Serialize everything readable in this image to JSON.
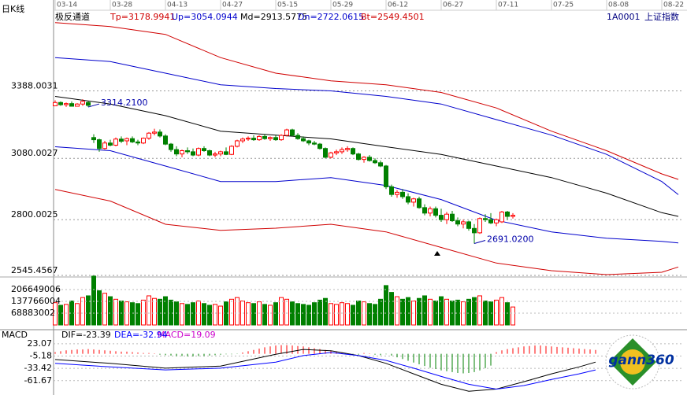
{
  "chart_data": {
    "type": "candlestick",
    "period": "日K线",
    "indicator": "极反通道",
    "code": "1A0001",
    "name": "上证指数",
    "logo": "gann360",
    "up_color": "#ff0000",
    "down_color": "#008000",
    "xlim": [
      0,
      114
    ],
    "xticks": [
      {
        "value": 0,
        "label": "03-14"
      },
      {
        "value": 10,
        "label": "03-28"
      },
      {
        "value": 20,
        "label": "04-13"
      },
      {
        "value": 30,
        "label": "04-27"
      },
      {
        "value": 40,
        "label": "05-15"
      },
      {
        "value": 50,
        "label": "05-29"
      },
      {
        "value": 60,
        "label": "06-12"
      },
      {
        "value": 70,
        "label": "06-27"
      },
      {
        "value": 80,
        "label": "07-11"
      },
      {
        "value": 90,
        "label": "07-25"
      },
      {
        "value": 100,
        "label": "08-08"
      },
      {
        "value": 110,
        "label": "08-22"
      }
    ],
    "ylim": [
      2545.4567,
      3760
    ],
    "yticks": [
      3388.0031,
      3080.0027,
      2800.0025,
      2545.4567
    ],
    "grid": true,
    "x": [
      0,
      1,
      2,
      3,
      4,
      5,
      6,
      7,
      8,
      9,
      10,
      11,
      12,
      13,
      14,
      15,
      16,
      17,
      18,
      19,
      20,
      21,
      22,
      23,
      24,
      25,
      26,
      27,
      28,
      29,
      30,
      31,
      32,
      33,
      34,
      35,
      36,
      37,
      38,
      39,
      40,
      41,
      42,
      43,
      44,
      45,
      46,
      47,
      48,
      49,
      50,
      51,
      52,
      53,
      54,
      55,
      56,
      57,
      58,
      59,
      60,
      61,
      62,
      63,
      64,
      65,
      66,
      67,
      68,
      69,
      70,
      71,
      72,
      73,
      74,
      75,
      76,
      77,
      78,
      79,
      80,
      81,
      82,
      83
    ],
    "open": [
      3320,
      3335,
      3325,
      3330,
      3318,
      3328,
      3335,
      3175,
      3165,
      3125,
      3150,
      3140,
      3168,
      3160,
      3170,
      3155,
      3150,
      3172,
      3195,
      3200,
      3182,
      3145,
      3120,
      3100,
      3115,
      3110,
      3095,
      3125,
      3115,
      3095,
      3100,
      3110,
      3098,
      3135,
      3160,
      3168,
      3172,
      3165,
      3180,
      3170,
      3175,
      3165,
      3185,
      3210,
      3185,
      3170,
      3160,
      3150,
      3145,
      3125,
      3085,
      3105,
      3110,
      3120,
      3125,
      3100,
      3075,
      3085,
      3070,
      3060,
      3045,
      2950,
      2915,
      2925,
      2905,
      2880,
      2895,
      2855,
      2830,
      2850,
      2820,
      2800,
      2825,
      2795,
      2780,
      2790,
      2760,
      2740,
      2805,
      2800,
      2785,
      2790,
      2835,
      2815
    ],
    "high": [
      3345,
      3340,
      3335,
      3340,
      3332,
      3350,
      3340,
      3190,
      3170,
      3160,
      3165,
      3175,
      3180,
      3175,
      3180,
      3165,
      3175,
      3200,
      3215,
      3212,
      3190,
      3150,
      3135,
      3120,
      3130,
      3125,
      3130,
      3135,
      3120,
      3110,
      3115,
      3130,
      3140,
      3165,
      3175,
      3180,
      3185,
      3185,
      3190,
      3180,
      3185,
      3190,
      3215,
      3215,
      3195,
      3180,
      3165,
      3160,
      3150,
      3130,
      3110,
      3120,
      3130,
      3135,
      3130,
      3105,
      3090,
      3095,
      3080,
      3070,
      3050,
      2960,
      2935,
      2940,
      2920,
      2900,
      2905,
      2870,
      2860,
      2860,
      2850,
      2835,
      2840,
      2810,
      2800,
      2795,
      2780,
      2810,
      2825,
      2830,
      2805,
      2840,
      2840,
      2830
    ],
    "low": [
      3320,
      3320,
      3315,
      3318,
      3318,
      3320,
      3314.21,
      3150,
      3110,
      3120,
      3135,
      3135,
      3150,
      3140,
      3150,
      3140,
      3145,
      3165,
      3185,
      3175,
      3140,
      3110,
      3090,
      3085,
      3100,
      3090,
      3090,
      3110,
      3090,
      3085,
      3090,
      3095,
      3095,
      3130,
      3150,
      3160,
      3160,
      3160,
      3165,
      3160,
      3160,
      3160,
      3180,
      3180,
      3165,
      3155,
      3140,
      3140,
      3120,
      3080,
      3080,
      3095,
      3100,
      3110,
      3095,
      3070,
      3060,
      3065,
      3055,
      3040,
      2940,
      2905,
      2900,
      2895,
      2870,
      2860,
      2850,
      2820,
      2815,
      2810,
      2790,
      2780,
      2790,
      2770,
      2760,
      2750,
      2691.02,
      2735,
      2790,
      2780,
      2770,
      2785,
      2800,
      2805
    ],
    "close": [
      3335,
      3325,
      3330,
      3318,
      3328,
      3340,
      3322,
      3165,
      3125,
      3150,
      3140,
      3168,
      3158,
      3170,
      3155,
      3150,
      3172,
      3195,
      3200,
      3182,
      3145,
      3120,
      3100,
      3115,
      3110,
      3095,
      3125,
      3115,
      3095,
      3100,
      3110,
      3098,
      3135,
      3160,
      3168,
      3172,
      3165,
      3180,
      3170,
      3175,
      3165,
      3185,
      3210,
      3185,
      3170,
      3160,
      3150,
      3145,
      3125,
      3085,
      3105,
      3110,
      3120,
      3125,
      3100,
      3075,
      3085,
      3070,
      3060,
      3045,
      2950,
      2915,
      2925,
      2905,
      2880,
      2895,
      2855,
      2830,
      2850,
      2820,
      2800,
      2825,
      2795,
      2780,
      2790,
      2760,
      2740,
      2805,
      2800,
      2785,
      2800,
      2835,
      2815,
      2820
    ],
    "lines": [
      {
        "label": "Tp=3178.9941",
        "color": "#d00000",
        "x": [
          0,
          10,
          20,
          30,
          40,
          50,
          60,
          70,
          80,
          90,
          100,
          110,
          113
        ],
        "values": [
          3700,
          3682,
          3646,
          3540,
          3469,
          3434,
          3416,
          3381,
          3310,
          3204,
          3115,
          3009,
          2984
        ]
      },
      {
        "label": "Up=3054.0944",
        "color": "#0000cc",
        "x": [
          0,
          10,
          20,
          30,
          40,
          50,
          60,
          70,
          80,
          90,
          100,
          110,
          113
        ],
        "values": [
          3540,
          3522,
          3469,
          3416,
          3399,
          3388,
          3363,
          3328,
          3257,
          3186,
          3098,
          2974,
          2914
        ]
      },
      {
        "label": "Md=2913.5775",
        "color": "#000000",
        "x": [
          0,
          10,
          20,
          30,
          40,
          50,
          60,
          70,
          80,
          90,
          100,
          110,
          113
        ],
        "values": [
          3363,
          3328,
          3275,
          3204,
          3186,
          3169,
          3133,
          3098,
          3045,
          2992,
          2921,
          2832,
          2815
        ]
      },
      {
        "label": "Dn=2722.0615",
        "color": "#0000cc",
        "x": [
          0,
          10,
          20,
          30,
          40,
          50,
          60,
          70,
          80,
          90,
          100,
          110,
          113
        ],
        "values": [
          3133,
          3115,
          3045,
          2974,
          2974,
          2992,
          2956,
          2892,
          2797,
          2744,
          2715,
          2701,
          2694
        ]
      },
      {
        "label": "Bt=2549.4501",
        "color": "#d00000",
        "x": [
          0,
          10,
          20,
          30,
          40,
          50,
          60,
          70,
          80,
          90,
          100,
          110,
          113
        ],
        "values": [
          2938,
          2885,
          2779,
          2751,
          2761,
          2779,
          2744,
          2673,
          2602,
          2567,
          2549,
          2560,
          2584
        ]
      }
    ],
    "annotations": [
      {
        "value": 3314.21,
        "label": "3314.2100"
      },
      {
        "value": 2691.02,
        "label": "2691.0200"
      }
    ],
    "volume": {
      "ylim": [
        0,
        280000000
      ],
      "yticks": [
        206649006,
        137766004,
        68883002
      ],
      "values": [
        130000000,
        115000000,
        120000000,
        140000000,
        125000000,
        160000000,
        170000000,
        285000000,
        200000000,
        185000000,
        165000000,
        150000000,
        140000000,
        135000000,
        130000000,
        125000000,
        145000000,
        170000000,
        155000000,
        150000000,
        165000000,
        145000000,
        135000000,
        125000000,
        120000000,
        130000000,
        140000000,
        125000000,
        115000000,
        120000000,
        110000000,
        135000000,
        150000000,
        160000000,
        140000000,
        130000000,
        125000000,
        135000000,
        120000000,
        115000000,
        130000000,
        160000000,
        150000000,
        135000000,
        125000000,
        120000000,
        115000000,
        130000000,
        145000000,
        155000000,
        125000000,
        120000000,
        130000000,
        125000000,
        115000000,
        140000000,
        135000000,
        125000000,
        120000000,
        150000000,
        230000000,
        190000000,
        165000000,
        150000000,
        160000000,
        140000000,
        155000000,
        170000000,
        150000000,
        140000000,
        165000000,
        150000000,
        140000000,
        145000000,
        135000000,
        150000000,
        160000000,
        170000000,
        140000000,
        135000000,
        145000000,
        160000000,
        130000000,
        105000000
      ]
    },
    "macd": {
      "title": "MACD",
      "ylim": [
        -91,
        41
      ],
      "yticks": [
        23.07,
        -5.18,
        -33.42,
        -61.67
      ],
      "histogram_label": "MACD=19.09",
      "histogram_color": "#cc00cc",
      "histogram": [
        4,
        6,
        8,
        9,
        10,
        10,
        11,
        10,
        9,
        8,
        7,
        6,
        5,
        5,
        4,
        3,
        2,
        2,
        1,
        -2,
        -3,
        -4,
        -5,
        -5,
        -6,
        -6,
        -5,
        -5,
        -4,
        -3,
        -2,
        -1,
        -1,
        -0.5,
        3,
        6,
        9,
        12,
        15,
        17,
        19,
        20,
        20,
        19,
        18,
        17,
        15,
        13,
        11,
        9,
        7,
        5,
        3,
        1,
        -1,
        -2,
        2,
        1,
        -2,
        -3,
        -1,
        -4,
        -8,
        -12,
        -16,
        -20,
        -24,
        -28,
        -32,
        -35,
        -38,
        -40,
        -42,
        -44,
        -45,
        -44,
        -42,
        -38,
        -33,
        -27,
        4,
        8,
        11,
        13,
        15,
        17,
        18,
        19,
        19,
        18,
        17,
        16,
        15,
        14,
        13,
        12,
        11,
        10,
        9
      ],
      "lines": [
        {
          "label": "DIF=-23.39",
          "color": "#000000",
          "x": [
            0,
            10,
            20,
            30,
            40,
            45,
            50,
            55,
            60,
            65,
            70,
            75,
            80,
            85,
            90,
            95,
            98
          ],
          "values": [
            -13,
            -22,
            -33,
            -28,
            -1,
            10,
            7,
            -4,
            -22,
            -46,
            -70,
            -86,
            -81,
            -64,
            -46,
            -30,
            -19
          ]
        },
        {
          "label": "DEA=-32.94",
          "color": "#0000ff",
          "x": [
            0,
            10,
            20,
            30,
            40,
            45,
            50,
            55,
            60,
            65,
            70,
            75,
            80,
            85,
            90,
            95,
            98
          ],
          "values": [
            -22,
            -30,
            -37,
            -33,
            -19,
            -4,
            3,
            -4,
            -15,
            -33,
            -52,
            -70,
            -81,
            -73,
            -59,
            -46,
            -37
          ]
        }
      ]
    }
  }
}
